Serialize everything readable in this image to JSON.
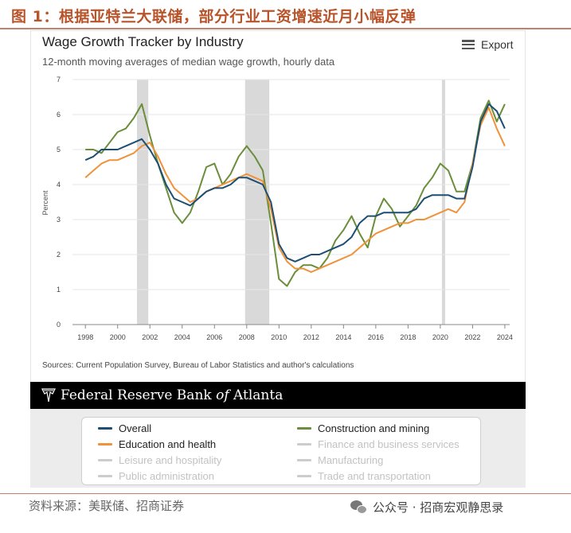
{
  "figure": {
    "title": "图 1：根据亚特兰大联储，部分行业工资增速近月小幅反弹",
    "footer_source": "资料来源：美联储、招商证券",
    "wechat_label": "公众号 · 招商宏观静思录",
    "accent_color": "#b8532a"
  },
  "header": {
    "export_label": "Export",
    "export_icon": "hamburger-menu-icon"
  },
  "banner": {
    "org_prefix": "Federal Reserve Bank ",
    "org_of": "of",
    "org_suffix": " Atlanta"
  },
  "chart_data": {
    "type": "line",
    "title": "Wage Growth Tracker by Industry",
    "subtitle": "12-month moving averages of median wage growth, hourly data",
    "ylabel": "Percent",
    "xlabel": "",
    "xlim": [
      1997.2,
      2024.3
    ],
    "ylim": [
      0,
      7
    ],
    "x_ticks": [
      1998,
      2000,
      2002,
      2004,
      2006,
      2008,
      2010,
      2012,
      2014,
      2016,
      2018,
      2020,
      2022,
      2024
    ],
    "y_ticks": [
      0,
      1,
      2,
      3,
      4,
      5,
      6,
      7
    ],
    "recessions": [
      [
        2001.2,
        2001.9
      ],
      [
        2007.9,
        2009.4
      ],
      [
        2020.1,
        2020.3
      ]
    ],
    "source": "Sources: Current Population Survey, Bureau of Labor Statistics and author's calculations",
    "legend_placement": "bottom",
    "series": [
      {
        "name": "Overall",
        "color": "#1c4f73",
        "visible": true,
        "x": [
          1998,
          1998.5,
          1999,
          1999.5,
          2000,
          2000.5,
          2001,
          2001.5,
          2002,
          2002.5,
          2003,
          2003.5,
          2004,
          2004.5,
          2005,
          2005.5,
          2006,
          2006.5,
          2007,
          2007.5,
          2008,
          2008.5,
          2009,
          2009.5,
          2010,
          2010.5,
          2011,
          2011.5,
          2012,
          2012.5,
          2013,
          2013.5,
          2014,
          2014.5,
          2015,
          2015.5,
          2016,
          2016.5,
          2017,
          2017.5,
          2018,
          2018.5,
          2019,
          2019.5,
          2020,
          2020.5,
          2021,
          2021.5,
          2022,
          2022.5,
          2023,
          2023.5,
          2024
        ],
        "y": [
          4.7,
          4.8,
          5.0,
          5.0,
          5.0,
          5.1,
          5.2,
          5.3,
          5.0,
          4.6,
          4.0,
          3.6,
          3.5,
          3.4,
          3.6,
          3.8,
          3.9,
          3.9,
          4.0,
          4.2,
          4.2,
          4.1,
          4.0,
          3.5,
          2.3,
          1.9,
          1.8,
          1.9,
          2.0,
          2.0,
          2.1,
          2.2,
          2.3,
          2.5,
          2.9,
          3.1,
          3.1,
          3.2,
          3.2,
          3.2,
          3.2,
          3.3,
          3.6,
          3.7,
          3.7,
          3.7,
          3.6,
          3.6,
          4.5,
          5.8,
          6.3,
          6.1,
          5.6
        ]
      },
      {
        "name": "Education and health",
        "color": "#f0923a",
        "visible": true,
        "x": [
          1998,
          1998.5,
          1999,
          1999.5,
          2000,
          2000.5,
          2001,
          2001.5,
          2002,
          2002.5,
          2003,
          2003.5,
          2004,
          2004.5,
          2005,
          2005.5,
          2006,
          2006.5,
          2007,
          2007.5,
          2008,
          2008.5,
          2009,
          2009.5,
          2010,
          2010.5,
          2011,
          2011.5,
          2012,
          2012.5,
          2013,
          2013.5,
          2014,
          2014.5,
          2015,
          2015.5,
          2016,
          2016.5,
          2017,
          2017.5,
          2018,
          2018.5,
          2019,
          2019.5,
          2020,
          2020.5,
          2021,
          2021.5,
          2022,
          2022.5,
          2023,
          2023.5,
          2024
        ],
        "y": [
          4.2,
          4.4,
          4.6,
          4.7,
          4.7,
          4.8,
          4.9,
          5.1,
          5.2,
          4.8,
          4.3,
          3.9,
          3.7,
          3.5,
          3.6,
          3.8,
          3.9,
          4.0,
          4.1,
          4.2,
          4.3,
          4.2,
          4.1,
          3.3,
          2.2,
          1.8,
          1.6,
          1.6,
          1.5,
          1.6,
          1.7,
          1.8,
          1.9,
          2.0,
          2.2,
          2.4,
          2.6,
          2.7,
          2.8,
          2.9,
          2.9,
          3.0,
          3.0,
          3.1,
          3.2,
          3.3,
          3.2,
          3.5,
          4.6,
          5.7,
          6.2,
          5.6,
          5.1
        ]
      },
      {
        "name": "Construction and mining",
        "color": "#6b8e3a",
        "visible": true,
        "x": [
          1998,
          1998.5,
          1999,
          1999.5,
          2000,
          2000.5,
          2001,
          2001.5,
          2002,
          2002.5,
          2003,
          2003.5,
          2004,
          2004.5,
          2005,
          2005.5,
          2006,
          2006.5,
          2007,
          2007.5,
          2008,
          2008.5,
          2009,
          2009.5,
          2010,
          2010.5,
          2011,
          2011.5,
          2012,
          2012.5,
          2013,
          2013.5,
          2014,
          2014.5,
          2015,
          2015.5,
          2016,
          2016.5,
          2017,
          2017.5,
          2018,
          2018.5,
          2019,
          2019.5,
          2020,
          2020.5,
          2021,
          2021.5,
          2022,
          2022.5,
          2023,
          2023.5,
          2024
        ],
        "y": [
          5.0,
          5.0,
          4.9,
          5.2,
          5.5,
          5.6,
          5.9,
          6.3,
          5.4,
          4.6,
          3.9,
          3.2,
          2.9,
          3.2,
          3.8,
          4.5,
          4.6,
          4.0,
          4.3,
          4.8,
          5.1,
          4.8,
          4.4,
          2.9,
          1.3,
          1.1,
          1.5,
          1.7,
          1.7,
          1.6,
          1.9,
          2.4,
          2.7,
          3.1,
          2.6,
          2.2,
          3.1,
          3.6,
          3.3,
          2.8,
          3.1,
          3.4,
          3.9,
          4.2,
          4.6,
          4.4,
          3.8,
          3.8,
          4.6,
          5.9,
          6.4,
          5.8,
          6.3
        ]
      }
    ],
    "legend": [
      {
        "label": "Overall",
        "color": "#1c4f73",
        "active": true
      },
      {
        "label": "Construction and mining",
        "color": "#6b8e3a",
        "active": true
      },
      {
        "label": "Education and health",
        "color": "#f0923a",
        "active": true
      },
      {
        "label": "Finance and business services",
        "color": "#cccccc",
        "active": false
      },
      {
        "label": "Leisure and hospitality",
        "color": "#cccccc",
        "active": false
      },
      {
        "label": "Manufacturing",
        "color": "#cccccc",
        "active": false
      },
      {
        "label": "Public administration",
        "color": "#cccccc",
        "active": false
      },
      {
        "label": "Trade and transportation",
        "color": "#cccccc",
        "active": false
      }
    ]
  }
}
